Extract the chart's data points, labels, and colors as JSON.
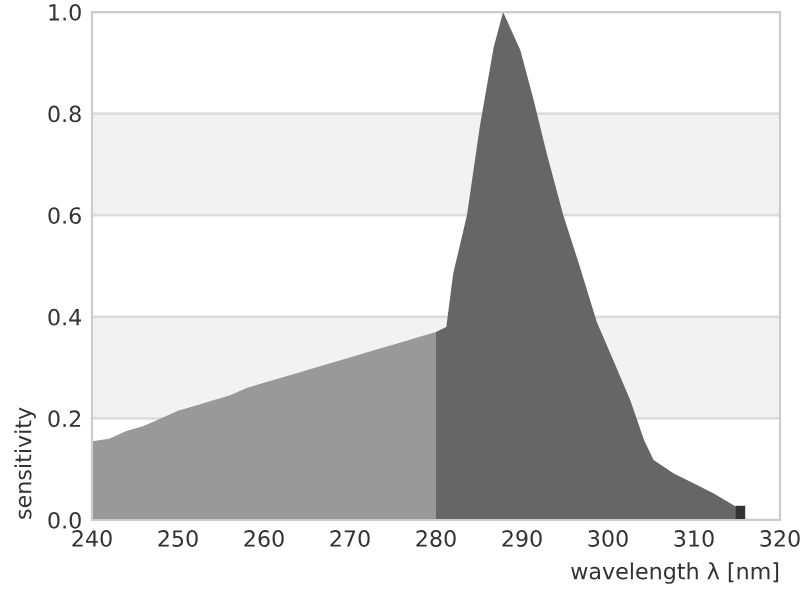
{
  "chart_data": {
    "type": "area",
    "xlabel": "wavelength λ [nm]",
    "ylabel": "sensitivity",
    "xlim": [
      240,
      320
    ],
    "ylim": [
      0,
      1.0
    ],
    "xticks": [
      240,
      250,
      260,
      270,
      280,
      290,
      300,
      310,
      320
    ],
    "yticks": [
      {
        "value": 0,
        "label": "0.0"
      },
      {
        "value": 0.2,
        "label": "0.2"
      },
      {
        "value": 0.4,
        "label": "0.4"
      },
      {
        "value": 0.6,
        "label": "0.6"
      },
      {
        "value": 0.8,
        "label": "0.8"
      },
      {
        "value": 1.0,
        "label": "1.0"
      }
    ],
    "grid": "y",
    "bands": [
      {
        "axis": "y",
        "from": 0.2,
        "to": 0.4,
        "color": "#f2f2f2"
      },
      {
        "axis": "y",
        "from": 0.6,
        "to": 0.8,
        "color": "#f2f2f2"
      }
    ],
    "series": [
      {
        "color": "#999999",
        "x": [
          240,
          242,
          244,
          246,
          248,
          250,
          252,
          254,
          256,
          258,
          260,
          262,
          264,
          266,
          268,
          270,
          272,
          274,
          276,
          278,
          280
        ],
        "values": [
          0.155,
          0.16,
          0.175,
          0.185,
          0.2,
          0.215,
          0.225,
          0.235,
          0.245,
          0.26,
          0.27,
          0.28,
          0.29,
          0.3,
          0.31,
          0.32,
          0.33,
          0.34,
          0.35,
          0.36,
          0.37
        ]
      },
      {
        "color": "#666666",
        "x": [
          280,
          281.2,
          282,
          283.6,
          285.1,
          286.7,
          287.8,
          289.8,
          291.3,
          292.9,
          294.8,
          296.7,
          298.7,
          300.6,
          302.6,
          304.2,
          305.3,
          307.6,
          310,
          312.3,
          314.6,
          315
        ],
        "values": [
          0.37,
          0.38,
          0.485,
          0.6,
          0.775,
          0.93,
          1.0,
          0.925,
          0.83,
          0.72,
          0.6,
          0.5,
          0.39,
          0.315,
          0.235,
          0.157,
          0.118,
          0.092,
          0.072,
          0.052,
          0.029,
          0.025
        ]
      },
      {
        "type": "bar",
        "color": "#333333",
        "x": [
          315.4
        ],
        "values": [
          0.028
        ]
      }
    ]
  }
}
